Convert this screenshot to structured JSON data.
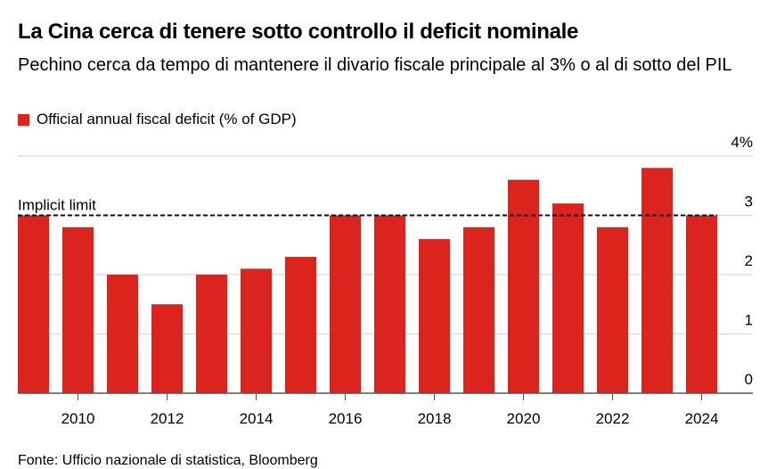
{
  "chart_data": {
    "type": "bar",
    "title": "La Cina cerca di tenere sotto controllo il deficit nominale",
    "subtitle": "Pechino cerca da tempo di mantenere il divario fiscale principale al 3% o al di sotto del PIL",
    "legend": [
      "Official annual fiscal deficit (% of GDP)"
    ],
    "categories": [
      2009,
      2010,
      2011,
      2012,
      2013,
      2014,
      2015,
      2016,
      2017,
      2018,
      2019,
      2020,
      2021,
      2022,
      2023,
      2024
    ],
    "values": [
      3.0,
      2.8,
      2.0,
      1.5,
      2.0,
      2.1,
      2.3,
      3.0,
      3.0,
      2.6,
      2.8,
      3.6,
      3.2,
      2.8,
      3.8,
      3.0
    ],
    "xticks": [
      "2010",
      "2012",
      "2014",
      "2016",
      "2018",
      "2020",
      "2022",
      "2024"
    ],
    "yticks": [
      "0",
      "1",
      "2",
      "3",
      "4%"
    ],
    "ylim": [
      0,
      4
    ],
    "reference_line": {
      "value": 3,
      "label": "Implicit limit"
    },
    "source": "Fonte: Ufficio nazionale di statistica, Bloomberg",
    "color": "#dc241f",
    "grid": true
  }
}
